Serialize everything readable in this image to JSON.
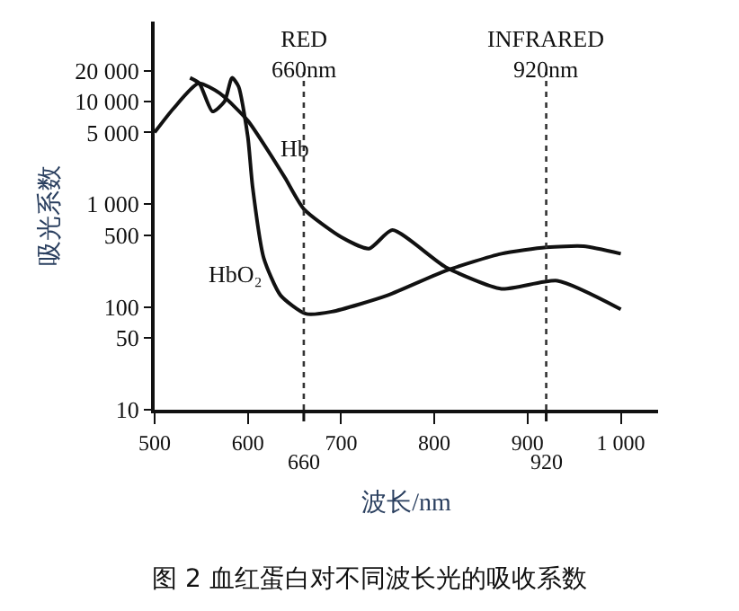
{
  "chart_data": {
    "type": "line",
    "title": "图 2 血红蛋白对不同波长光的吸收系数",
    "xlabel": "波长/nm",
    "ylabel": "吸光系数",
    "log": "y",
    "legend": false,
    "marker": "none",
    "line_style": "solid",
    "xlim": [
      500,
      1040
    ],
    "ylim": [
      10,
      60000
    ],
    "xticks": [
      500,
      600,
      700,
      800,
      900,
      {
        "value": 1000,
        "label": "1 000"
      }
    ],
    "annotations": [
      "660",
      "920"
    ],
    "yticks": [
      10,
      50,
      100,
      500,
      {
        "value": 1000,
        "label": "1 000"
      },
      {
        "value": 5000,
        "label": "5 000"
      },
      {
        "value": 10000,
        "label": "10 000"
      },
      {
        "value": 20000,
        "label": "20 000"
      }
    ],
    "series": [
      {
        "name": "Hb",
        "color": "#111111",
        "x": [
          500,
          520,
          547,
          570,
          600,
          620,
          640,
          660,
          700,
          730,
          755,
          812,
          872,
          932,
          1000
        ],
        "values": [
          5000,
          8500,
          15000,
          12000,
          6500,
          3500,
          1800,
          900,
          480,
          370,
          560,
          245,
          150,
          180,
          95
        ]
      },
      {
        "name": "HbO₂",
        "color": "#111111",
        "x": [
          538,
          548,
          562,
          575,
          583,
          590,
          600,
          605,
          617,
          635,
          662,
          690,
          750,
          812,
          872,
          920,
          960,
          1000
        ],
        "values": [
          17000,
          15000,
          8000,
          10000,
          17000,
          14000,
          4500,
          1500,
          300,
          130,
          86,
          90,
          130,
          225,
          330,
          380,
          390,
          330
        ]
      }
    ],
    "ref_lines": [
      {
        "axis": "x",
        "value": 660,
        "label": "RED\n660nm",
        "line_style": "dotted",
        "color": "#333333"
      },
      {
        "axis": "x",
        "value": 920,
        "label": "INFRARED\n920nm",
        "line_style": "dotted",
        "color": "#333333"
      }
    ]
  }
}
